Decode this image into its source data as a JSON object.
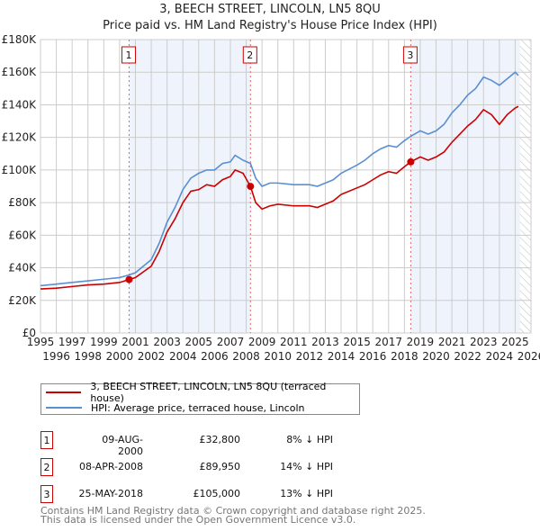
{
  "title": "3, BEECH STREET, LINCOLN, LN5 8QU",
  "subtitle": "Price paid vs. HM Land Registry's House Price Index (HPI)",
  "chart_data": {
    "type": "line",
    "title": "3, BEECH STREET, LINCOLN, LN5 8QU",
    "xlim": [
      1995,
      2026
    ],
    "ylim": [
      0,
      180000
    ],
    "yticks": [
      0,
      20000,
      40000,
      60000,
      80000,
      100000,
      120000,
      140000,
      160000,
      180000
    ],
    "ytick_labels": [
      "£0",
      "£20K",
      "£40K",
      "£60K",
      "£80K",
      "£100K",
      "£120K",
      "£140K",
      "£160K",
      "£180K"
    ],
    "xticks": [
      "1995",
      "1996",
      "1997",
      "1998",
      "1999",
      "2000",
      "2001",
      "2002",
      "2003",
      "2004",
      "2005",
      "2006",
      "2007",
      "2008",
      "2009",
      "2010",
      "2011",
      "2012",
      "2013",
      "2014",
      "2015",
      "2016",
      "2017",
      "2018",
      "2019",
      "2020",
      "2021",
      "2022",
      "2023",
      "2024",
      "2025",
      "2026"
    ],
    "grid": true,
    "series": [
      {
        "name": "3, BEECH STREET, LINCOLN, LN5 8QU (terraced house)",
        "color": "#cc0000",
        "x": [
          1995,
          1996,
          1997,
          1998,
          1999,
          2000,
          2000.6,
          2001,
          2002,
          2002.5,
          2003,
          2003.5,
          2004,
          2004.5,
          2005,
          2005.5,
          2006,
          2006.5,
          2007,
          2007.3,
          2007.8,
          2008.27,
          2008.6,
          2009,
          2009.5,
          2010,
          2011,
          2012,
          2012.5,
          2013,
          2013.5,
          2014,
          2015,
          2015.5,
          2016,
          2016.5,
          2017,
          2017.5,
          2018,
          2018.4,
          2019,
          2019.5,
          2020,
          2020.5,
          2021,
          2021.5,
          2022,
          2022.5,
          2023,
          2023.5,
          2024,
          2024.5,
          2025,
          2025.2
        ],
        "y": [
          27000,
          27500,
          28500,
          29500,
          30000,
          31000,
          32800,
          34000,
          41000,
          50000,
          62000,
          70000,
          80000,
          87000,
          88000,
          91000,
          90000,
          94000,
          96000,
          100000,
          98000,
          89950,
          80000,
          76000,
          78000,
          79000,
          78000,
          78000,
          77000,
          79000,
          81000,
          85000,
          89000,
          91000,
          94000,
          97000,
          99000,
          98000,
          102000,
          105000,
          108000,
          106000,
          108000,
          111000,
          117000,
          122000,
          127000,
          131000,
          137000,
          134000,
          128000,
          134000,
          138000,
          139000
        ]
      },
      {
        "name": "HPI: Average price, terraced house, Lincoln",
        "color": "#5b8fd1",
        "x": [
          1995,
          1996,
          1997,
          1998,
          1999,
          2000,
          2000.6,
          2001,
          2002,
          2002.5,
          2003,
          2003.5,
          2004,
          2004.5,
          2005,
          2005.5,
          2006,
          2006.5,
          2007,
          2007.3,
          2007.8,
          2008.27,
          2008.6,
          2009,
          2009.5,
          2010,
          2011,
          2012,
          2012.5,
          2013,
          2013.5,
          2014,
          2015,
          2015.5,
          2016,
          2016.5,
          2017,
          2017.5,
          2018,
          2018.4,
          2019,
          2019.5,
          2020,
          2020.5,
          2021,
          2021.5,
          2022,
          2022.5,
          2023,
          2023.5,
          2024,
          2024.5,
          2025,
          2025.2
        ],
        "y": [
          29000,
          30000,
          31000,
          32000,
          33000,
          34000,
          35600,
          37000,
          45000,
          55000,
          68000,
          77000,
          88000,
          95000,
          98000,
          100000,
          100000,
          104000,
          105000,
          109000,
          106000,
          104000,
          95000,
          90000,
          92000,
          92000,
          91000,
          91000,
          90000,
          92000,
          94000,
          98000,
          103000,
          106000,
          110000,
          113000,
          115000,
          114000,
          118000,
          120700,
          124000,
          122000,
          124000,
          128000,
          135000,
          140000,
          146000,
          150000,
          157000,
          155000,
          152000,
          156000,
          160000,
          158000
        ]
      }
    ],
    "sales": [
      {
        "label": "1",
        "x": 2000.6,
        "y": 32800
      },
      {
        "label": "2",
        "x": 2008.27,
        "y": 89950
      },
      {
        "label": "3",
        "x": 2018.4,
        "y": 105000
      }
    ],
    "shaded": [
      [
        2000.6,
        2008.27
      ],
      [
        2018.4,
        2025.3
      ]
    ],
    "hatch_from": 2025.3
  },
  "legend": [
    "3, BEECH STREET, LINCOLN, LN5 8QU (terraced house)",
    "HPI: Average price, terraced house, Lincoln"
  ],
  "table": [
    {
      "num": "1",
      "date": "09-AUG-2000",
      "price": "£32,800",
      "hpi": "8% ↓ HPI"
    },
    {
      "num": "2",
      "date": "08-APR-2008",
      "price": "£89,950",
      "hpi": "14% ↓ HPI"
    },
    {
      "num": "3",
      "date": "25-MAY-2018",
      "price": "£105,000",
      "hpi": "13% ↓ HPI"
    }
  ],
  "footer": [
    "Contains HM Land Registry data © Crown copyright and database right 2025.",
    "This data is licensed under the Open Government Licence v3.0."
  ]
}
